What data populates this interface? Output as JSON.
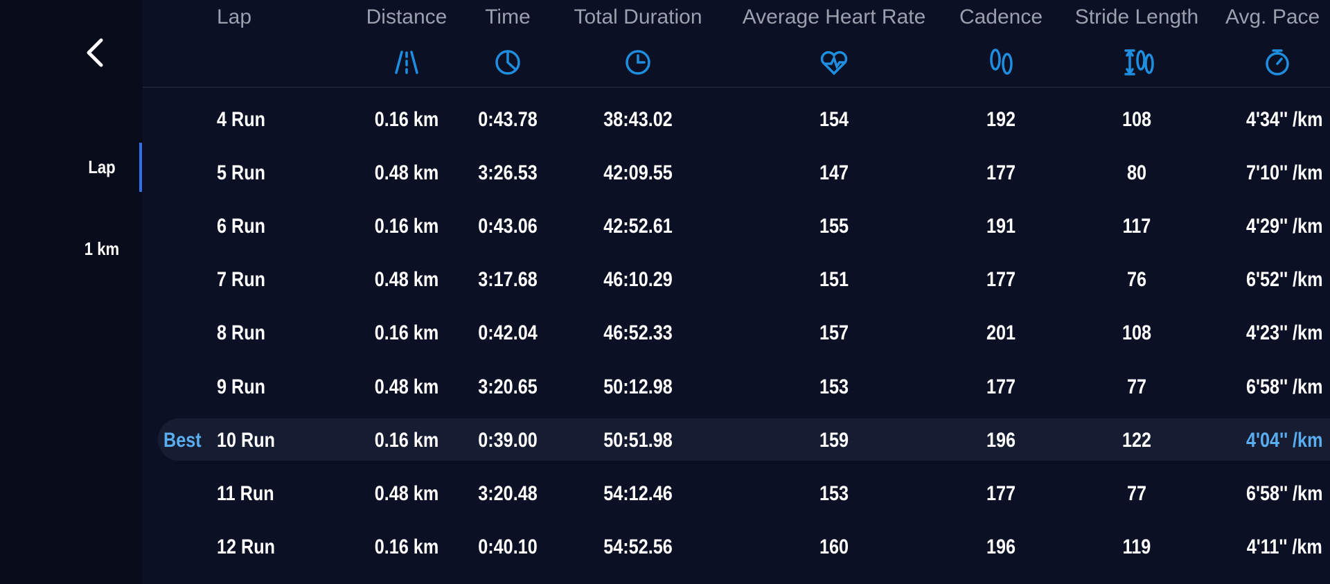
{
  "sidebar": {
    "tabs": [
      "Lap",
      "1 km"
    ]
  },
  "table": {
    "columns": [
      "Lap",
      "Distance",
      "Time",
      "Total Duration",
      "Average Heart Rate",
      "Cadence",
      "Stride Length",
      "Avg. Pace"
    ],
    "rows": [
      {
        "cells": [
          "4 Run",
          "0.16 km",
          "0:43.78",
          "38:43.02",
          "154",
          "192",
          "108",
          "4'34'' /km"
        ]
      },
      {
        "cells": [
          "5 Run",
          "0.48 km",
          "3:26.53",
          "42:09.55",
          "147",
          "177",
          "80",
          "7'10'' /km"
        ]
      },
      {
        "cells": [
          "6 Run",
          "0.16 km",
          "0:43.06",
          "42:52.61",
          "155",
          "191",
          "117",
          "4'29'' /km"
        ]
      },
      {
        "cells": [
          "7 Run",
          "0.48 km",
          "3:17.68",
          "46:10.29",
          "151",
          "177",
          "76",
          "6'52'' /km"
        ]
      },
      {
        "cells": [
          "8 Run",
          "0.16 km",
          "0:42.04",
          "46:52.33",
          "157",
          "201",
          "108",
          "4'23'' /km"
        ]
      },
      {
        "cells": [
          "9 Run",
          "0.48 km",
          "3:20.65",
          "50:12.98",
          "153",
          "177",
          "77",
          "6'58'' /km"
        ]
      },
      {
        "badge": "Best",
        "cells": [
          "10 Run",
          "0.16 km",
          "0:39.00",
          "50:51.98",
          "159",
          "196",
          "122",
          "4'04'' /km"
        ]
      },
      {
        "cells": [
          "11 Run",
          "0.48 km",
          "3:20.48",
          "54:12.46",
          "153",
          "177",
          "77",
          "6'58'' /km"
        ]
      },
      {
        "cells": [
          "12 Run",
          "0.16 km",
          "0:40.10",
          "54:52.56",
          "160",
          "196",
          "119",
          "4'11'' /km"
        ]
      }
    ]
  }
}
